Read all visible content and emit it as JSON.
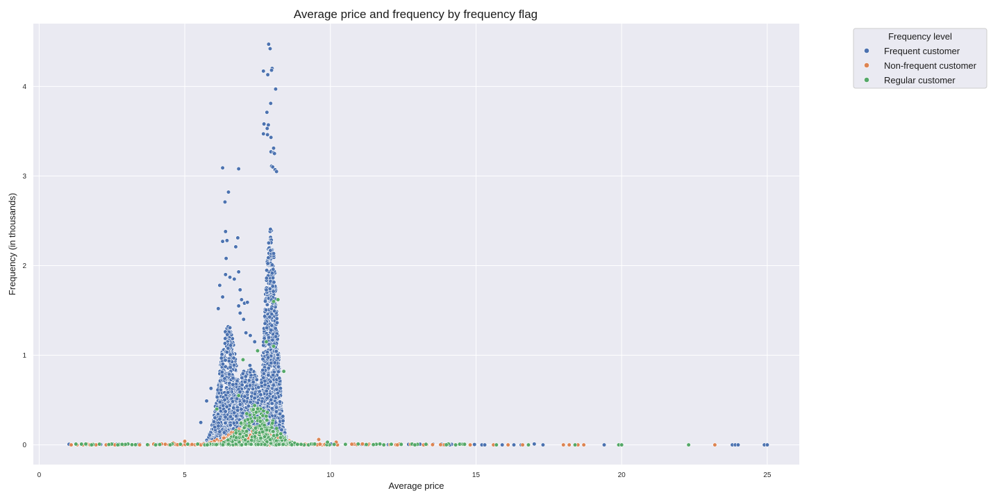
{
  "chart_data": {
    "type": "scatter",
    "title": "Average price and frequency by frequency flag",
    "xlabel": "Average price",
    "ylabel": "Frequency (in thousands)",
    "xlim": [
      -0.2,
      26.1
    ],
    "ylim": [
      -0.22,
      4.7
    ],
    "x_ticks": [
      0,
      5,
      10,
      15,
      20,
      25
    ],
    "y_ticks": [
      0,
      1,
      2,
      3,
      4
    ],
    "grid": true,
    "background": "#EAEAF2",
    "legend": {
      "title": "Frequency level",
      "placement": "outside-top-right"
    },
    "series": [
      {
        "name": "Frequent customer",
        "color": "#4C72B0",
        "clusters": [
          {
            "x_center": 6.5,
            "x_spread": 0.4,
            "y_max": 1.35,
            "count": 1300
          },
          {
            "x_center": 7.95,
            "x_spread": 0.28,
            "y_max": 2.45,
            "count": 1500
          },
          {
            "x_center": 7.2,
            "x_spread": 0.6,
            "y_max": 0.9,
            "count": 1100
          }
        ],
        "points": [
          [
            7.88,
            4.47
          ],
          [
            7.93,
            4.42
          ],
          [
            8.0,
            4.2
          ],
          [
            7.98,
            4.18
          ],
          [
            7.7,
            4.17
          ],
          [
            7.85,
            4.13
          ],
          [
            8.12,
            3.97
          ],
          [
            7.95,
            3.81
          ],
          [
            7.82,
            3.71
          ],
          [
            7.72,
            3.58
          ],
          [
            7.87,
            3.57
          ],
          [
            7.83,
            3.53
          ],
          [
            7.7,
            3.47
          ],
          [
            7.84,
            3.46
          ],
          [
            7.96,
            3.43
          ],
          [
            8.05,
            3.31
          ],
          [
            7.96,
            3.27
          ],
          [
            8.05,
            3.26
          ],
          [
            8.08,
            3.25
          ],
          [
            7.98,
            3.11
          ],
          [
            8.02,
            3.1
          ],
          [
            8.1,
            3.07
          ],
          [
            8.15,
            3.05
          ],
          [
            6.3,
            3.09
          ],
          [
            6.85,
            3.08
          ],
          [
            6.5,
            2.82
          ],
          [
            6.38,
            2.71
          ],
          [
            6.4,
            2.38
          ],
          [
            6.3,
            2.27
          ],
          [
            6.45,
            2.28
          ],
          [
            6.82,
            2.31
          ],
          [
            6.75,
            2.21
          ],
          [
            6.42,
            2.08
          ],
          [
            6.85,
            1.93
          ],
          [
            6.4,
            1.9
          ],
          [
            6.55,
            1.87
          ],
          [
            6.2,
            1.78
          ],
          [
            6.7,
            1.85
          ],
          [
            6.9,
            1.73
          ],
          [
            7.05,
            1.58
          ],
          [
            7.15,
            1.59
          ],
          [
            6.95,
            1.62
          ],
          [
            6.3,
            1.65
          ],
          [
            6.15,
            1.52
          ],
          [
            6.85,
            1.55
          ],
          [
            7.02,
            1.4
          ],
          [
            6.9,
            1.47
          ],
          [
            7.1,
            1.25
          ],
          [
            7.25,
            1.22
          ],
          [
            7.4,
            1.15
          ],
          [
            5.9,
            0.63
          ],
          [
            5.75,
            0.49
          ],
          [
            5.55,
            0.25
          ],
          [
            13.8,
            0.01
          ],
          [
            14.1,
            0.0
          ],
          [
            14.5,
            0.01
          ],
          [
            15.2,
            0.0
          ],
          [
            15.3,
            0.0
          ],
          [
            15.9,
            0.0
          ],
          [
            16.3,
            0.0
          ],
          [
            16.55,
            0.0
          ],
          [
            17.0,
            0.01
          ],
          [
            17.3,
            0.0
          ],
          [
            19.4,
            0.0
          ],
          [
            23.8,
            0.0
          ],
          [
            23.9,
            0.0
          ],
          [
            24.0,
            0.0
          ],
          [
            24.9,
            0.0
          ],
          [
            25.0,
            0.0
          ]
        ]
      },
      {
        "name": "Non-frequent customer",
        "color": "#DD8452",
        "clusters": [
          {
            "x_center": 7.3,
            "x_spread": 1.0,
            "y_max": 0.22,
            "count": 260
          }
        ],
        "points": [
          [
            1.1,
            0.0
          ],
          [
            1.3,
            0.0
          ],
          [
            1.5,
            0.0
          ],
          [
            1.75,
            0.0
          ],
          [
            1.95,
            0.0
          ],
          [
            2.3,
            0.0
          ],
          [
            2.6,
            0.0
          ],
          [
            2.9,
            0.0
          ],
          [
            3.2,
            0.0
          ],
          [
            3.45,
            0.0
          ],
          [
            3.75,
            0.0
          ],
          [
            4.2,
            0.01
          ],
          [
            4.6,
            0.02
          ],
          [
            5.0,
            0.04
          ],
          [
            9.6,
            0.06
          ],
          [
            10.2,
            0.03
          ],
          [
            11.1,
            0.01
          ],
          [
            12.3,
            0.0
          ],
          [
            13.2,
            0.0
          ],
          [
            14.8,
            0.0
          ],
          [
            15.6,
            0.0
          ],
          [
            16.1,
            0.0
          ],
          [
            16.6,
            0.0
          ],
          [
            18.0,
            0.0
          ],
          [
            18.2,
            0.0
          ],
          [
            18.5,
            0.0
          ],
          [
            18.7,
            0.0
          ],
          [
            23.2,
            0.0
          ]
        ]
      },
      {
        "name": "Regular customer",
        "color": "#55A868",
        "clusters": [
          {
            "x_center": 7.5,
            "x_spread": 0.7,
            "y_max": 0.45,
            "count": 320
          }
        ],
        "points": [
          [
            8.2,
            1.62
          ],
          [
            8.05,
            1.6
          ],
          [
            8.05,
            1.1
          ],
          [
            7.8,
            1.15
          ],
          [
            8.4,
            0.82
          ],
          [
            7.0,
            0.95
          ],
          [
            7.5,
            1.05
          ],
          [
            6.85,
            0.55
          ],
          [
            6.1,
            0.4
          ],
          [
            1.8,
            0.0
          ],
          [
            2.7,
            0.0
          ],
          [
            4.0,
            0.0
          ],
          [
            4.5,
            0.0
          ],
          [
            9.9,
            0.03
          ],
          [
            11.7,
            0.01
          ],
          [
            12.9,
            0.0
          ],
          [
            14.3,
            0.0
          ],
          [
            15.7,
            0.0
          ],
          [
            16.8,
            0.0
          ],
          [
            18.4,
            0.0
          ],
          [
            19.9,
            0.0
          ],
          [
            20.0,
            0.0
          ],
          [
            22.3,
            0.0
          ]
        ]
      }
    ]
  }
}
